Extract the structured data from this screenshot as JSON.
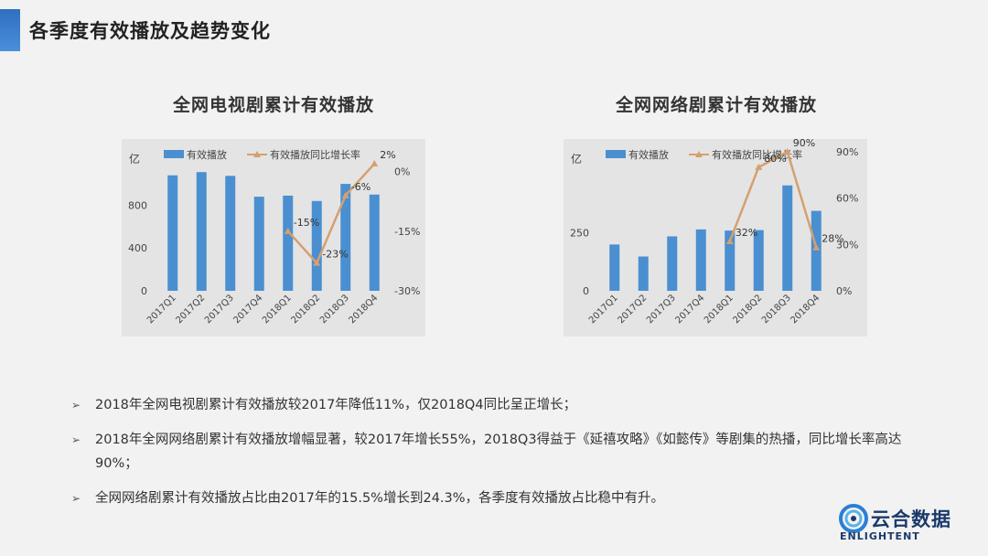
{
  "page": {
    "title": "各季度有效播放及趋势变化"
  },
  "chart_data": [
    {
      "type": "bar",
      "title": "全网电视剧累计有效播放",
      "unit_label": "亿",
      "categories": [
        "2017Q1",
        "2017Q2",
        "2017Q3",
        "2017Q4",
        "2018Q1",
        "2018Q2",
        "2018Q3",
        "2018Q4"
      ],
      "series": [
        {
          "name": "有效播放",
          "type": "bar",
          "axis": "left",
          "color": "#4a8fd0",
          "values": [
            1080,
            1110,
            1075,
            880,
            890,
            840,
            1000,
            900
          ]
        },
        {
          "name": "有效播放同比增长率",
          "type": "line",
          "axis": "right",
          "color": "#d4a070",
          "values": [
            null,
            null,
            null,
            null,
            -15,
            -23,
            -6,
            2
          ],
          "labels": [
            "",
            "",
            "",
            "",
            "-15%",
            "-23%",
            "-6%",
            "2%"
          ]
        }
      ],
      "left_axis": {
        "ticks": [
          0,
          400,
          800
        ],
        "tick_labels": [
          "0",
          "400",
          "800"
        ],
        "range": [
          0,
          1300
        ]
      },
      "right_axis": {
        "ticks": [
          0,
          -15,
          -30
        ],
        "tick_labels": [
          "0%",
          "-15%",
          "-30%"
        ],
        "range": [
          -30,
          5
        ]
      }
    },
    {
      "type": "bar",
      "title": "全网网络剧累计有效播放",
      "unit_label": "亿",
      "categories": [
        "2017Q1",
        "2017Q2",
        "2017Q3",
        "2017Q4",
        "2018Q1",
        "2018Q2",
        "2018Q3",
        "2018Q4"
      ],
      "series": [
        {
          "name": "有效播放",
          "type": "bar",
          "axis": "left",
          "color": "#4a8fd0",
          "values": [
            200,
            148,
            235,
            265,
            260,
            262,
            455,
            345
          ]
        },
        {
          "name": "有效播放同比增长率",
          "type": "line",
          "axis": "right",
          "color": "#d4a070",
          "values": [
            null,
            null,
            null,
            null,
            32,
            80,
            90,
            28
          ],
          "labels": [
            "",
            "",
            "",
            "",
            "32%",
            "80%",
            "90%",
            "28%"
          ]
        }
      ],
      "left_axis": {
        "ticks": [
          0,
          250
        ],
        "tick_labels": [
          "0",
          "250"
        ],
        "range": [
          0,
          600
        ]
      },
      "right_axis": {
        "ticks": [
          0,
          30,
          60,
          90
        ],
        "tick_labels": [
          "0%",
          "30%",
          "60%",
          "90%"
        ],
        "range": [
          0,
          90
        ]
      }
    }
  ],
  "bullets": [
    "2018年全网电视剧累计有效播放较2017年降低11%，仅2018Q4同比呈正增长；",
    "2018年全网网络剧累计有效播放增幅显著，较2017年增长55%，2018Q3得益于《延禧攻略》《如懿传》等剧集的热播，同比增长率高达90%；",
    "全网网络剧累计有效播放占比由2017年的15.5%增长到24.3%，各季度有效播放占比稳中有升。"
  ],
  "bullet_marks": [
    "➢",
    "➢",
    "➢"
  ],
  "logo": {
    "cn": "云合数据",
    "en": "ENLIGHTENT",
    "icon": "swirl-logo-icon"
  }
}
